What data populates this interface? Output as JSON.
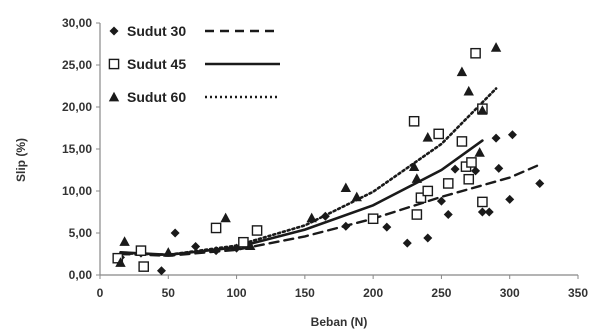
{
  "chart_data": {
    "type": "scatter",
    "xlabel": "Beban (N)",
    "ylabel": "Slip (%)",
    "xlim": [
      0,
      350
    ],
    "ylim": [
      0,
      30
    ],
    "x_ticks": [
      "0",
      "50",
      "100",
      "150",
      "200",
      "250",
      "300",
      "350"
    ],
    "y_ticks": [
      "0,00",
      "5,00",
      "10,00",
      "15,00",
      "20,00",
      "25,00",
      "30,00"
    ],
    "grid": false,
    "legend_position": "top-left",
    "colors": {
      "points": "#1a1a1a",
      "axis": "#888888"
    },
    "series": [
      {
        "name": "Sudut 30",
        "marker": "diamond",
        "line": "dashed",
        "points": [
          [
            15,
            2.1
          ],
          [
            30,
            2.6
          ],
          [
            45,
            0.5
          ],
          [
            55,
            5.0
          ],
          [
            70,
            3.4
          ],
          [
            85,
            2.9
          ],
          [
            100,
            3.2
          ],
          [
            165,
            7.0
          ],
          [
            180,
            5.8
          ],
          [
            210,
            5.7
          ],
          [
            225,
            3.8
          ],
          [
            240,
            4.4
          ],
          [
            250,
            8.8
          ],
          [
            255,
            7.2
          ],
          [
            260,
            12.6
          ],
          [
            275,
            12.4
          ],
          [
            280,
            7.5
          ],
          [
            285,
            7.5
          ],
          [
            290,
            16.3
          ],
          [
            292,
            12.7
          ],
          [
            300,
            9.0
          ],
          [
            302,
            16.7
          ],
          [
            322,
            10.9
          ]
        ],
        "trend": [
          [
            15,
            2.5
          ],
          [
            50,
            2.3
          ],
          [
            100,
            3.0
          ],
          [
            150,
            4.6
          ],
          [
            200,
            6.7
          ],
          [
            250,
            9.3
          ],
          [
            300,
            11.6
          ],
          [
            320,
            13.0
          ]
        ]
      },
      {
        "name": "Sudut 45",
        "marker": "square",
        "line": "solid",
        "points": [
          [
            13,
            2.0
          ],
          [
            30,
            2.9
          ],
          [
            32,
            1.0
          ],
          [
            85,
            5.6
          ],
          [
            105,
            3.9
          ],
          [
            115,
            5.3
          ],
          [
            200,
            6.7
          ],
          [
            230,
            18.3
          ],
          [
            232,
            7.2
          ],
          [
            235,
            9.2
          ],
          [
            240,
            10.0
          ],
          [
            248,
            16.8
          ],
          [
            255,
            10.9
          ],
          [
            265,
            15.9
          ],
          [
            268,
            12.9
          ],
          [
            270,
            11.4
          ],
          [
            272,
            13.4
          ],
          [
            275,
            26.4
          ],
          [
            280,
            19.8
          ],
          [
            280,
            8.7
          ]
        ],
        "trend": [
          [
            15,
            2.7
          ],
          [
            50,
            2.4
          ],
          [
            100,
            3.3
          ],
          [
            150,
            5.4
          ],
          [
            200,
            8.3
          ],
          [
            250,
            12.5
          ],
          [
            280,
            16.0
          ]
        ]
      },
      {
        "name": "Sudut 60",
        "marker": "triangle",
        "line": "dotted",
        "points": [
          [
            15,
            1.5
          ],
          [
            18,
            4.0
          ],
          [
            50,
            2.7
          ],
          [
            92,
            6.8
          ],
          [
            110,
            3.5
          ],
          [
            155,
            6.8
          ],
          [
            180,
            10.4
          ],
          [
            188,
            9.3
          ],
          [
            230,
            12.9
          ],
          [
            232,
            11.5
          ],
          [
            240,
            16.4
          ],
          [
            265,
            24.2
          ],
          [
            270,
            21.9
          ],
          [
            278,
            14.6
          ],
          [
            280,
            19.6
          ],
          [
            290,
            27.1
          ]
        ],
        "trend": [
          [
            15,
            2.6
          ],
          [
            50,
            2.4
          ],
          [
            100,
            3.5
          ],
          [
            150,
            5.9
          ],
          [
            200,
            9.9
          ],
          [
            250,
            15.6
          ],
          [
            290,
            22.2
          ]
        ]
      }
    ]
  }
}
